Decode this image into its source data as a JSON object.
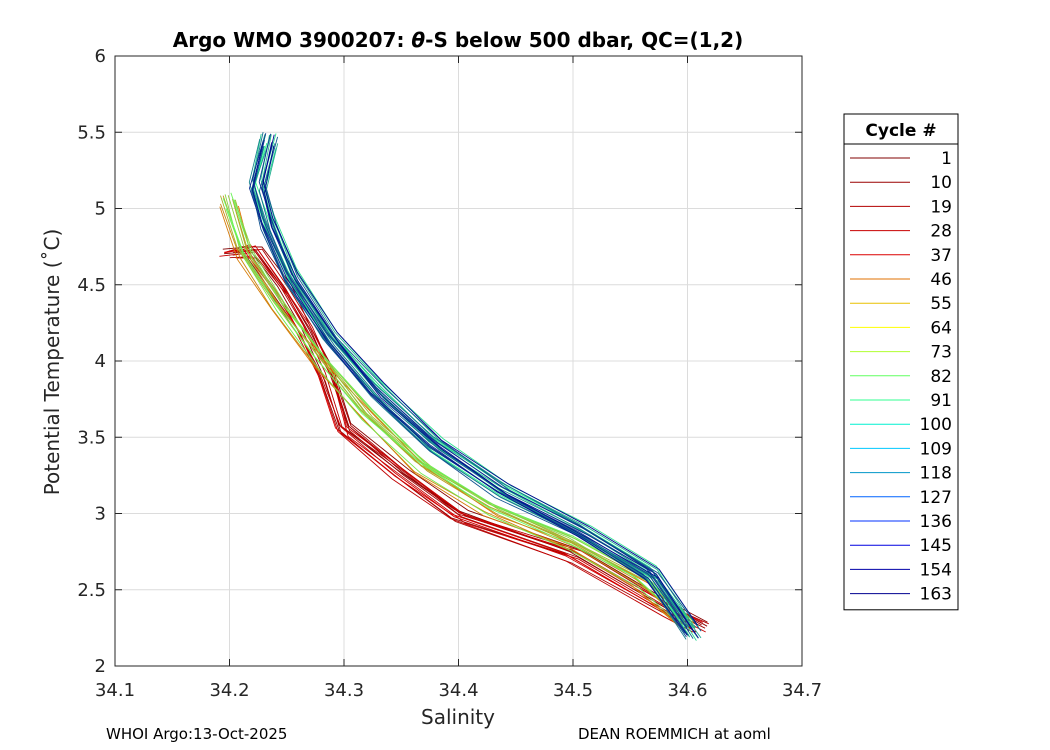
{
  "chart_data": {
    "type": "line",
    "title_pre": "Argo WMO 3900207: ",
    "title_theta": "θ",
    "title_post": "-S below 500 dbar,  QC=(1,2)",
    "xlabel": "Salinity",
    "ylabel": "Potential Temperature (˚C)",
    "xlim": [
      34.1,
      34.7
    ],
    "ylim": [
      2,
      6
    ],
    "xticks": [
      34.1,
      34.2,
      34.3,
      34.4,
      34.5,
      34.6,
      34.7
    ],
    "xtick_labels": [
      "34.1",
      "34.2",
      "34.3",
      "34.4",
      "34.5",
      "34.6",
      "34.7"
    ],
    "yticks": [
      2,
      2.5,
      3,
      3.5,
      4,
      4.5,
      5,
      5.5,
      6
    ],
    "ytick_labels": [
      "2",
      "2.5",
      "3",
      "3.5",
      "4",
      "4.5",
      "5",
      "5.5",
      "6"
    ],
    "grid": true,
    "colormap": "jet",
    "legend_position": "outside-right",
    "legend": {
      "title": "Cycle #",
      "entries": [
        {
          "label": "1",
          "color": "#800000"
        },
        {
          "label": "10",
          "color": "#9a0000"
        },
        {
          "label": "19",
          "color": "#b30000"
        },
        {
          "label": "28",
          "color": "#c80000"
        },
        {
          "label": "37",
          "color": "#dc0000"
        },
        {
          "label": "46",
          "color": "#e07000"
        },
        {
          "label": "55",
          "color": "#e8c000"
        },
        {
          "label": "64",
          "color": "#ffff00"
        },
        {
          "label": "73",
          "color": "#b0ff30"
        },
        {
          "label": "82",
          "color": "#60ff60"
        },
        {
          "label": "91",
          "color": "#30ff90"
        },
        {
          "label": "100",
          "color": "#00f0d0"
        },
        {
          "label": "109",
          "color": "#00c8ff"
        },
        {
          "label": "118",
          "color": "#0096c8"
        },
        {
          "label": "127",
          "color": "#0064ff"
        },
        {
          "label": "136",
          "color": "#0030ff"
        },
        {
          "label": "145",
          "color": "#0000e0"
        },
        {
          "label": "154",
          "color": "#0000a8"
        },
        {
          "label": "163",
          "color": "#000090"
        }
      ]
    },
    "profile_groups": [
      {
        "name": "cycles-early",
        "color_range": [
          "#800000",
          "#dc0000"
        ],
        "count": 14,
        "points": [
          [
            34.2,
            4.7
          ],
          [
            34.22,
            4.72
          ],
          [
            34.245,
            4.45
          ],
          [
            34.265,
            4.2
          ],
          [
            34.285,
            3.9
          ],
          [
            34.3,
            3.55
          ],
          [
            34.35,
            3.25
          ],
          [
            34.4,
            2.98
          ],
          [
            34.5,
            2.72
          ],
          [
            34.585,
            2.35
          ],
          [
            34.61,
            2.25
          ]
        ]
      },
      {
        "name": "cycles-mid",
        "color_range": [
          "#e07000",
          "#60ff60"
        ],
        "count": 14,
        "points": [
          [
            34.2,
            5.05
          ],
          [
            34.215,
            4.7
          ],
          [
            34.245,
            4.35
          ],
          [
            34.28,
            4.0
          ],
          [
            34.32,
            3.65
          ],
          [
            34.37,
            3.3
          ],
          [
            34.43,
            3.02
          ],
          [
            34.5,
            2.8
          ],
          [
            34.56,
            2.55
          ],
          [
            34.6,
            2.28
          ]
        ]
      },
      {
        "name": "cycles-late",
        "color_range": [
          "#30ff90",
          "#000090"
        ],
        "count": 26,
        "points": [
          [
            34.235,
            5.45
          ],
          [
            34.225,
            5.15
          ],
          [
            34.235,
            4.9
          ],
          [
            34.255,
            4.55
          ],
          [
            34.29,
            4.15
          ],
          [
            34.33,
            3.8
          ],
          [
            34.38,
            3.45
          ],
          [
            34.44,
            3.15
          ],
          [
            34.51,
            2.88
          ],
          [
            34.57,
            2.6
          ],
          [
            34.605,
            2.22
          ]
        ]
      }
    ]
  },
  "footer": {
    "left": "WHOI Argo:13-Oct-2025",
    "right": "DEAN ROEMMICH at aoml"
  }
}
